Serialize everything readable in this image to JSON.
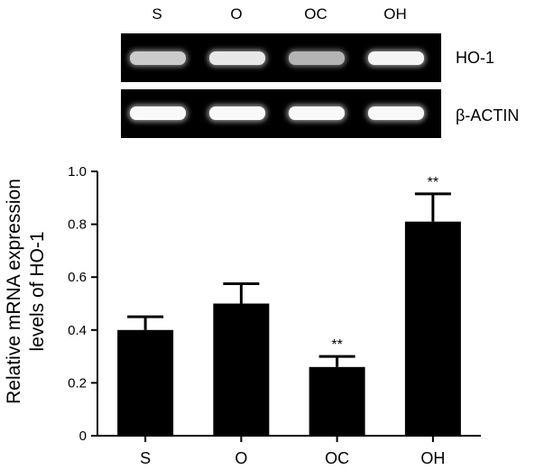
{
  "gel": {
    "lanes": [
      "S",
      "O",
      "OC",
      "OH"
    ],
    "rows": [
      {
        "label": "HO-1",
        "intensities": [
          0.55,
          0.8,
          0.35,
          0.9
        ]
      },
      {
        "label": "β-ACTIN",
        "intensities": [
          0.95,
          0.95,
          0.95,
          0.95
        ]
      }
    ]
  },
  "chart_data": {
    "type": "bar",
    "categories": [
      "S",
      "O",
      "OC",
      "OH"
    ],
    "values": [
      0.4,
      0.5,
      0.26,
      0.81
    ],
    "errors": [
      0.05,
      0.075,
      0.04,
      0.105
    ],
    "annotations": [
      "",
      "",
      "**",
      "**"
    ],
    "ylabel": "Relative mRNA expression levels of HO-1",
    "ylabel_lines": [
      "Relative mRNA expression",
      "levels of HO-1"
    ],
    "ylim": [
      0,
      1.0
    ],
    "yticks": [
      "0",
      "0.2",
      "0.4",
      "0.6",
      "0.8",
      "1.0"
    ],
    "color": "#000000",
    "grid": false
  }
}
